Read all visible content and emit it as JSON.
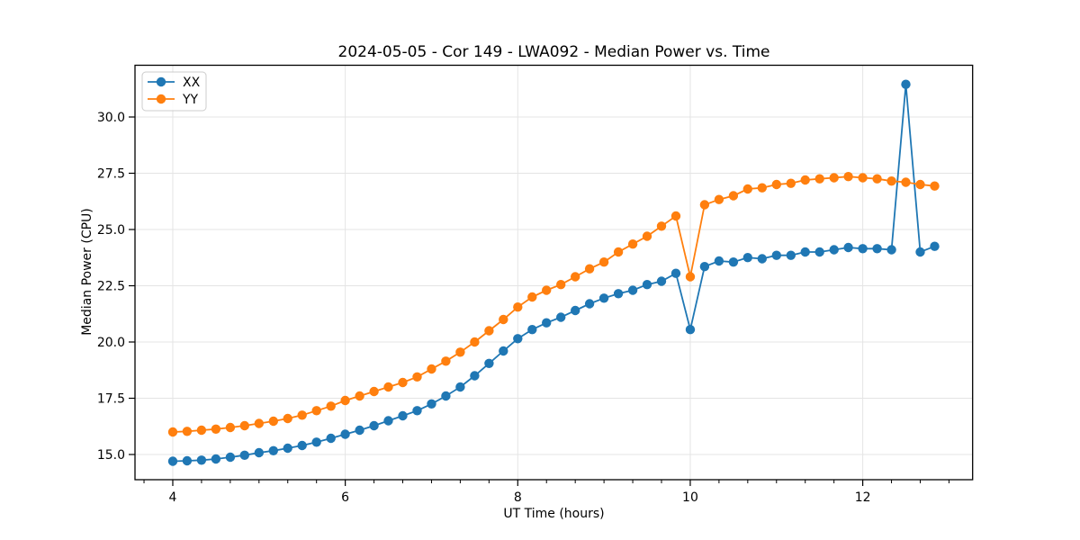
{
  "title": "2024-05-05 - Cor 149 - LWA092 - Median Power vs. Time",
  "colors": {
    "series_xx": "#1f77b4",
    "series_yy": "#ff7f0e",
    "grid": "#e4e4e4",
    "axis": "#000000",
    "legend_border": "#cccccc",
    "background": "#ffffff"
  },
  "legend": {
    "items": [
      {
        "label": "XX",
        "color": "#1f77b4"
      },
      {
        "label": "YY",
        "color": "#ff7f0e"
      }
    ],
    "position": "upper-left"
  },
  "chart_data": {
    "type": "line",
    "title": "2024-05-05 - Cor 149 - LWA092 - Median Power vs. Time",
    "xlabel": "UT Time (hours)",
    "ylabel": "Median Power (CPU)",
    "xlim": [
      3.562,
      13.274
    ],
    "ylim": [
      13.88,
      32.3
    ],
    "grid": true,
    "legend_position": "upper-left",
    "x_major_ticks": [
      4,
      6,
      8,
      10,
      12
    ],
    "x_minor_step": 0.33333,
    "y_major_ticks": [
      15.0,
      17.5,
      20.0,
      22.5,
      25.0,
      27.5,
      30.0
    ],
    "x": [
      4.0,
      4.1667,
      4.3333,
      4.5,
      4.6667,
      4.8333,
      5.0,
      5.1667,
      5.3333,
      5.5,
      5.6667,
      5.8333,
      6.0,
      6.1667,
      6.3333,
      6.5,
      6.6667,
      6.8333,
      7.0,
      7.1667,
      7.3333,
      7.5,
      7.6667,
      7.8333,
      8.0,
      8.1667,
      8.3333,
      8.5,
      8.6667,
      8.8333,
      9.0,
      9.1667,
      9.3333,
      9.5,
      9.6667,
      9.8333,
      10.0,
      10.1667,
      10.3333,
      10.5,
      10.6667,
      10.8333,
      11.0,
      11.1667,
      11.3333,
      11.5,
      11.6667,
      11.8333,
      12.0,
      12.1667,
      12.3333,
      12.5,
      12.6667,
      12.8333
    ],
    "series": [
      {
        "name": "XX",
        "color": "#1f77b4",
        "values": [
          14.7,
          14.72,
          14.75,
          14.8,
          14.88,
          14.97,
          15.08,
          15.17,
          15.28,
          15.4,
          15.55,
          15.72,
          15.9,
          16.08,
          16.28,
          16.5,
          16.72,
          16.95,
          17.25,
          17.6,
          18.0,
          18.5,
          19.05,
          19.6,
          20.15,
          20.55,
          20.85,
          21.1,
          21.4,
          21.7,
          21.95,
          22.15,
          22.3,
          22.55,
          22.7,
          23.05,
          20.55,
          23.35,
          23.6,
          23.55,
          23.75,
          23.7,
          23.85,
          23.85,
          24.0,
          24.0,
          24.1,
          24.2,
          24.15,
          24.15,
          24.1,
          31.45,
          24.0,
          24.25
        ]
      },
      {
        "name": "YY",
        "color": "#ff7f0e",
        "values": [
          16.0,
          16.03,
          16.08,
          16.13,
          16.2,
          16.28,
          16.38,
          16.48,
          16.6,
          16.75,
          16.95,
          17.15,
          17.4,
          17.6,
          17.8,
          18.0,
          18.2,
          18.45,
          18.8,
          19.15,
          19.55,
          20.0,
          20.5,
          21.0,
          21.55,
          22.0,
          22.3,
          22.55,
          22.9,
          23.25,
          23.55,
          24.0,
          24.35,
          24.7,
          25.15,
          25.6,
          22.9,
          26.1,
          26.33,
          26.5,
          26.8,
          26.85,
          27.0,
          27.05,
          27.2,
          27.25,
          27.3,
          27.35,
          27.3,
          27.25,
          27.15,
          27.1,
          27.0,
          26.93
        ]
      }
    ]
  }
}
